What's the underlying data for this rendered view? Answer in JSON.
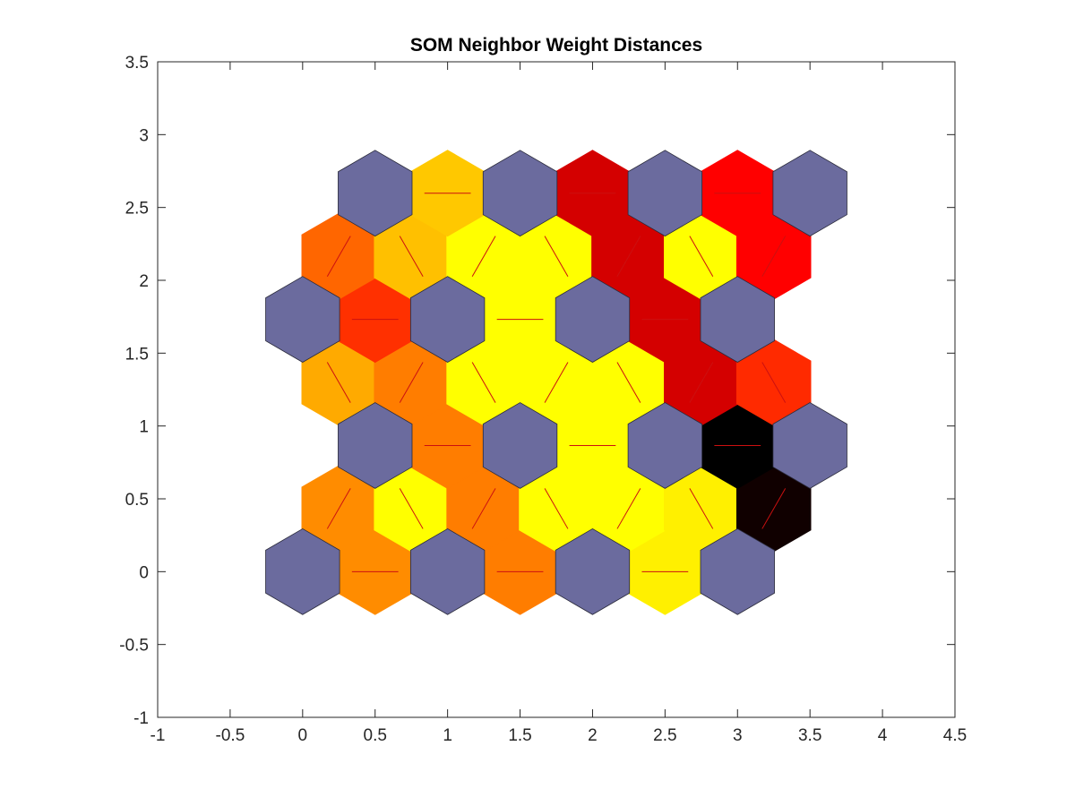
{
  "chart_data": {
    "type": "heatmap",
    "title": "SOM Neighbor Weight Distances",
    "xlabel": "",
    "ylabel": "",
    "xlim": [
      -1,
      4.5
    ],
    "ylim": [
      -1,
      3.5
    ],
    "x_ticks": [
      -1,
      -0.5,
      0,
      0.5,
      1,
      1.5,
      2,
      2.5,
      3,
      3.5,
      4,
      4.5
    ],
    "x_tick_labels": [
      "-1",
      "-0.5",
      "0",
      "0.5",
      "1",
      "1.5",
      "2",
      "2.5",
      "3",
      "3.5",
      "4",
      "4.5"
    ],
    "y_ticks": [
      -1,
      -0.5,
      0,
      0.5,
      1,
      1.5,
      2,
      2.5,
      3,
      3.5
    ],
    "y_tick_labels": [
      "-1",
      "-0.5",
      "0",
      "0.5",
      "1",
      "1.5",
      "2",
      "2.5",
      "3",
      "3.5"
    ],
    "grid": false,
    "neuron_color": "#6b6b9e",
    "link_color": "#cc1010",
    "neurons": [
      [
        0,
        0
      ],
      [
        1,
        0
      ],
      [
        2,
        0
      ],
      [
        3,
        0
      ],
      [
        0.5,
        0.866
      ],
      [
        1.5,
        0.866
      ],
      [
        2.5,
        0.866
      ],
      [
        3.5,
        0.866
      ],
      [
        0,
        1.732
      ],
      [
        1,
        1.732
      ],
      [
        2,
        1.732
      ],
      [
        3,
        1.732
      ],
      [
        0.5,
        2.598
      ],
      [
        1.5,
        2.598
      ],
      [
        2.5,
        2.598
      ],
      [
        3.5,
        2.598
      ]
    ],
    "links": [
      {
        "from": [
          0,
          0
        ],
        "to": [
          1,
          0
        ],
        "color": "#ff8c00"
      },
      {
        "from": [
          1,
          0
        ],
        "to": [
          2,
          0
        ],
        "color": "#ff7d00"
      },
      {
        "from": [
          2,
          0
        ],
        "to": [
          3,
          0
        ],
        "color": "#fff000"
      },
      {
        "from": [
          0,
          0
        ],
        "to": [
          0.5,
          0.866
        ],
        "color": "#ff8c00"
      },
      {
        "from": [
          1,
          0
        ],
        "to": [
          0.5,
          0.866
        ],
        "color": "#ffff00"
      },
      {
        "from": [
          1,
          0
        ],
        "to": [
          1.5,
          0.866
        ],
        "color": "#ff7d00"
      },
      {
        "from": [
          2,
          0
        ],
        "to": [
          1.5,
          0.866
        ],
        "color": "#ffff00"
      },
      {
        "from": [
          2,
          0
        ],
        "to": [
          2.5,
          0.866
        ],
        "color": "#ffff00"
      },
      {
        "from": [
          3,
          0
        ],
        "to": [
          2.5,
          0.866
        ],
        "color": "#fff000"
      },
      {
        "from": [
          3,
          0
        ],
        "to": [
          3.5,
          0.866
        ],
        "color": "#100000"
      },
      {
        "from": [
          0.5,
          0.866
        ],
        "to": [
          1.5,
          0.866
        ],
        "color": "#ff7d00"
      },
      {
        "from": [
          1.5,
          0.866
        ],
        "to": [
          2.5,
          0.866
        ],
        "color": "#ffff00"
      },
      {
        "from": [
          2.5,
          0.866
        ],
        "to": [
          3.5,
          0.866
        ],
        "color": "#000000"
      },
      {
        "from": [
          0.5,
          0.866
        ],
        "to": [
          0,
          1.732
        ],
        "color": "#ffaa00"
      },
      {
        "from": [
          0.5,
          0.866
        ],
        "to": [
          1,
          1.732
        ],
        "color": "#ff7d00"
      },
      {
        "from": [
          1.5,
          0.866
        ],
        "to": [
          1,
          1.732
        ],
        "color": "#ffff00"
      },
      {
        "from": [
          1.5,
          0.866
        ],
        "to": [
          2,
          1.732
        ],
        "color": "#ffff00"
      },
      {
        "from": [
          2.5,
          0.866
        ],
        "to": [
          2,
          1.732
        ],
        "color": "#ffff00"
      },
      {
        "from": [
          2.5,
          0.866
        ],
        "to": [
          3,
          1.732
        ],
        "color": "#d40000"
      },
      {
        "from": [
          3.5,
          0.866
        ],
        "to": [
          3,
          1.732
        ],
        "color": "#ff2a00"
      },
      {
        "from": [
          0,
          1.732
        ],
        "to": [
          1,
          1.732
        ],
        "color": "#ff3000"
      },
      {
        "from": [
          1,
          1.732
        ],
        "to": [
          2,
          1.732
        ],
        "color": "#ffff00"
      },
      {
        "from": [
          2,
          1.732
        ],
        "to": [
          3,
          1.732
        ],
        "color": "#d40000"
      },
      {
        "from": [
          0,
          1.732
        ],
        "to": [
          0.5,
          2.598
        ],
        "color": "#ff6600"
      },
      {
        "from": [
          1,
          1.732
        ],
        "to": [
          0.5,
          2.598
        ],
        "color": "#ffc000"
      },
      {
        "from": [
          1,
          1.732
        ],
        "to": [
          1.5,
          2.598
        ],
        "color": "#ffff00"
      },
      {
        "from": [
          2,
          1.732
        ],
        "to": [
          1.5,
          2.598
        ],
        "color": "#ffff00"
      },
      {
        "from": [
          2,
          1.732
        ],
        "to": [
          2.5,
          2.598
        ],
        "color": "#d40000"
      },
      {
        "from": [
          3,
          1.732
        ],
        "to": [
          2.5,
          2.598
        ],
        "color": "#ffff00"
      },
      {
        "from": [
          3,
          1.732
        ],
        "to": [
          3.5,
          2.598
        ],
        "color": "#ff0000"
      },
      {
        "from": [
          0.5,
          2.598
        ],
        "to": [
          1.5,
          2.598
        ],
        "color": "#ffc800"
      },
      {
        "from": [
          1.5,
          2.598
        ],
        "to": [
          2.5,
          2.598
        ],
        "color": "#d40000"
      },
      {
        "from": [
          2.5,
          2.598
        ],
        "to": [
          3.5,
          2.598
        ],
        "color": "#ff0000"
      }
    ]
  }
}
